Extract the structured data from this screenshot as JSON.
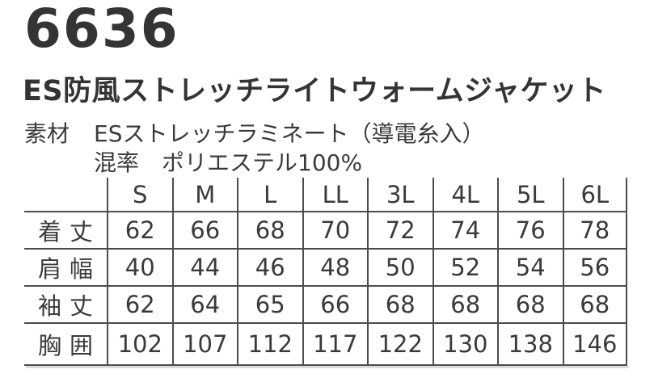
{
  "product": {
    "code": "6636",
    "name": "ES防風ストレッチライトウォームジャケット"
  },
  "materials": {
    "material_label": "素材",
    "material_value": "ESストレッチラミネート（導電糸入）",
    "blend_label": "混率",
    "blend_value": "ポリエステル100%"
  },
  "size_table": {
    "columns": [
      "S",
      "M",
      "L",
      "LL",
      "3L",
      "4L",
      "5L",
      "6L"
    ],
    "rows": [
      {
        "label": "着丈",
        "values": [
          "62",
          "66",
          "68",
          "70",
          "72",
          "74",
          "76",
          "78"
        ]
      },
      {
        "label": "肩幅",
        "values": [
          "40",
          "44",
          "46",
          "48",
          "50",
          "52",
          "54",
          "56"
        ]
      },
      {
        "label": "袖丈",
        "values": [
          "62",
          "64",
          "65",
          "66",
          "68",
          "68",
          "68",
          "68"
        ]
      },
      {
        "label": "胸囲",
        "values": [
          "102",
          "107",
          "112",
          "117",
          "122",
          "130",
          "138",
          "146"
        ]
      }
    ]
  },
  "colors": {
    "text": "#3a3a38",
    "line": "#4c4c4a",
    "background": "#ffffff"
  }
}
